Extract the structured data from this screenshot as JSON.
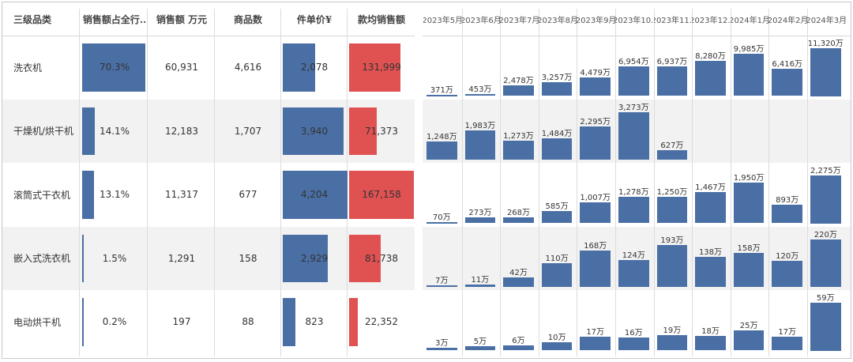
{
  "headers": {
    "category": "三级品类",
    "share": "销售额占全行..",
    "sales": "销售额 万元",
    "count": "商品数",
    "unit_price": "件单价¥",
    "per_item": "款均销售额"
  },
  "chart_data": {
    "type": "table",
    "rows": [
      {
        "category": "洗衣机",
        "share": "70.3%",
        "share_value": 70.3,
        "sales": "60,931",
        "count": "4,616",
        "unit_price": "2,078",
        "unit_price_value": 2078,
        "per_item": "131,999",
        "per_item_value": 131999
      },
      {
        "category": "干燥机/烘干机",
        "share": "14.1%",
        "share_value": 14.1,
        "sales": "12,183",
        "count": "1,707",
        "unit_price": "3,940",
        "unit_price_value": 3940,
        "per_item": "71,373",
        "per_item_value": 71373
      },
      {
        "category": "滚筒式干衣机",
        "share": "13.1%",
        "share_value": 13.1,
        "sales": "11,317",
        "count": "677",
        "unit_price": "4,204",
        "unit_price_value": 4204,
        "per_item": "167,158",
        "per_item_value": 167158
      },
      {
        "category": "嵌入式洗衣机",
        "share": "1.5%",
        "share_value": 1.5,
        "sales": "1,291",
        "count": "158",
        "unit_price": "2,929",
        "unit_price_value": 2929,
        "per_item": "81,738",
        "per_item_value": 81738
      },
      {
        "category": "电动烘干机",
        "share": "0.2%",
        "share_value": 0.2,
        "sales": "197",
        "count": "88",
        "unit_price": "823",
        "unit_price_value": 823,
        "per_item": "22,352",
        "per_item_value": 22352
      }
    ],
    "share_max": 70.3,
    "unit_price_max": 4204,
    "per_item_max": 167158,
    "monthly": {
      "type": "bar",
      "months": [
        "2023年5月",
        "2023年6月",
        "2023年7月",
        "2023年8月",
        "2023年9月",
        "2023年10..",
        "2023年11..",
        "2023年12..",
        "2024年1月",
        "2024年2月",
        "2024年3月"
      ],
      "series": [
        {
          "name": "洗衣机",
          "values": [
            371,
            453,
            2478,
            3257,
            4479,
            6954,
            6937,
            8280,
            9985,
            6416,
            11320
          ],
          "labels": [
            "371万",
            "453万",
            "2,478万",
            "3,257万",
            "4,479万",
            "6,954万",
            "6,937万",
            "8,280万",
            "9,985万",
            "6,416万",
            "11,320万"
          ]
        },
        {
          "name": "干燥机/烘干机",
          "values": [
            1248,
            1983,
            1273,
            1484,
            2295,
            3273,
            627,
            null,
            null,
            null,
            null
          ],
          "labels": [
            "1,248万",
            "1,983万",
            "1,273万",
            "1,484万",
            "2,295万",
            "3,273万",
            "627万",
            "",
            "",
            "",
            ""
          ]
        },
        {
          "name": "滚筒式干衣机",
          "values": [
            70,
            273,
            268,
            585,
            1007,
            1278,
            1250,
            1467,
            1950,
            893,
            2275
          ],
          "labels": [
            "70万",
            "273万",
            "268万",
            "585万",
            "1,007万",
            "1,278万",
            "1,250万",
            "1,467万",
            "1,950万",
            "893万",
            "2,275万"
          ]
        },
        {
          "name": "嵌入式洗衣机",
          "values": [
            7,
            11,
            42,
            110,
            168,
            124,
            193,
            138,
            158,
            120,
            220
          ],
          "labels": [
            "7万",
            "11万",
            "42万",
            "110万",
            "168万",
            "124万",
            "193万",
            "138万",
            "158万",
            "120万",
            "220万"
          ]
        },
        {
          "name": "电动烘干机",
          "values": [
            3,
            5,
            6,
            10,
            17,
            16,
            19,
            18,
            25,
            17,
            59
          ],
          "labels": [
            "3万",
            "5万",
            "6万",
            "10万",
            "17万",
            "16万",
            "19万",
            "18万",
            "25万",
            "17万",
            "59万"
          ]
        }
      ]
    }
  },
  "colors": {
    "blue": "#4a6fa5",
    "red": "#e05252",
    "row_alt": "#f2f2f2"
  }
}
